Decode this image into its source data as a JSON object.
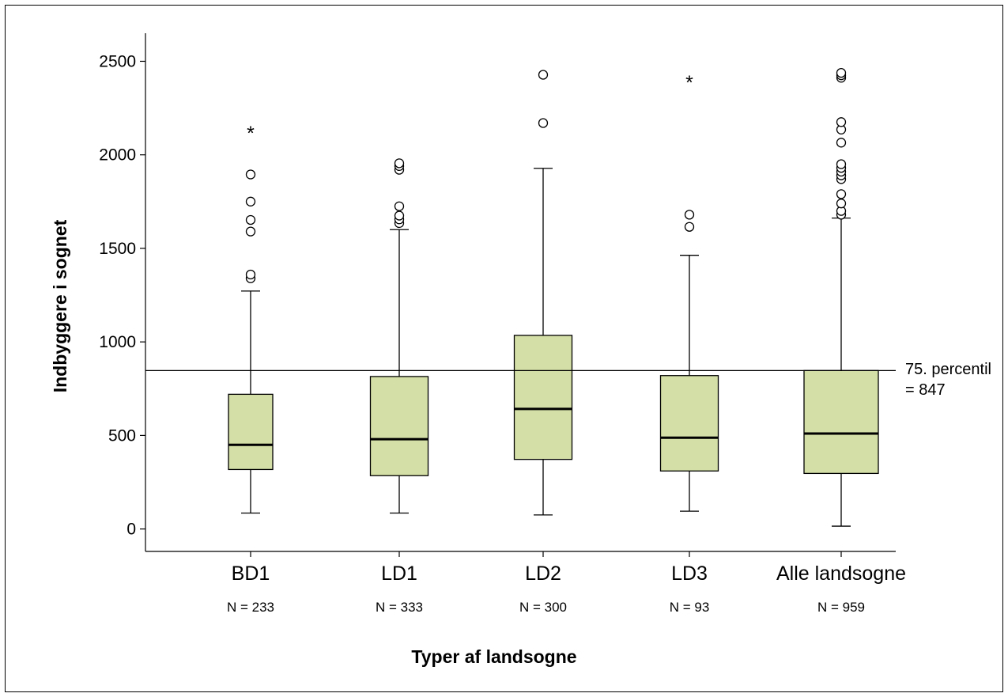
{
  "chart_data": {
    "type": "box",
    "xlabel": "Typer af landsogne",
    "ylabel": "Indbyggere i sognet",
    "ylim": [
      -120,
      2650
    ],
    "yticks": [
      0,
      500,
      1000,
      1500,
      2000,
      2500
    ],
    "grid": false,
    "reference_line": {
      "value": 847,
      "label_line1": "75. percentil",
      "label_line2": "= 847"
    },
    "style": {
      "box_fill": "#d3dfa6",
      "line_color": "#000000"
    },
    "categories": [
      {
        "name": "BD1",
        "n_label": "N = 233",
        "whisker_low": 85,
        "q1": 318,
        "median": 450,
        "q3": 720,
        "whisker_high": 1272,
        "outliers": [
          1340,
          1360,
          1590,
          1652,
          1750,
          1895
        ],
        "extremes": [
          2130
        ]
      },
      {
        "name": "LD1",
        "n_label": "N = 333",
        "whisker_low": 85,
        "q1": 285,
        "median": 480,
        "q3": 815,
        "whisker_high": 1600,
        "outliers": [
          1635,
          1655,
          1675,
          1725,
          1920,
          1940,
          1955
        ],
        "extremes": []
      },
      {
        "name": "LD2",
        "n_label": "N = 300",
        "whisker_low": 75,
        "q1": 372,
        "median": 642,
        "q3": 1035,
        "whisker_high": 1928,
        "outliers": [
          2170,
          2428
        ],
        "extremes": []
      },
      {
        "name": "LD3",
        "n_label": "N = 93",
        "whisker_low": 95,
        "q1": 310,
        "median": 488,
        "q3": 820,
        "whisker_high": 1463,
        "outliers": [
          1615,
          1680
        ],
        "extremes": [
          2400
        ]
      },
      {
        "name": "Alle landsogne",
        "n_label": "N = 959",
        "whisker_low": 15,
        "q1": 297,
        "median": 510,
        "q3": 847,
        "whisker_high": 1662,
        "outliers": [
          1680,
          1700,
          1740,
          1790,
          1870,
          1890,
          1910,
          1930,
          1950,
          2065,
          2135,
          2175,
          2412,
          2425,
          2438
        ],
        "extremes": []
      }
    ]
  }
}
